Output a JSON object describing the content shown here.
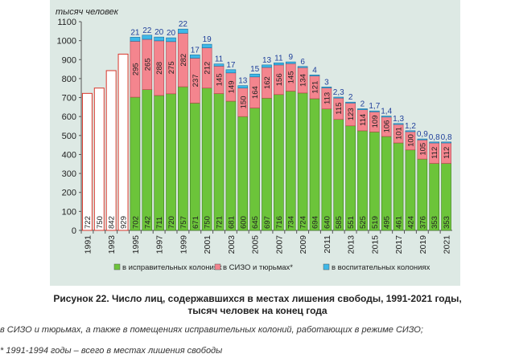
{
  "chart_data": {
    "type": "bar",
    "stacked": true,
    "ylabel": "тысяч человек",
    "ylim": [
      0,
      1100
    ],
    "yticks": [
      0,
      100,
      200,
      300,
      400,
      500,
      600,
      700,
      800,
      900,
      1000,
      1100
    ],
    "grid": false,
    "legend_position": "bottom",
    "categories": [
      "1991",
      "1992",
      "1993",
      "1994",
      "1995",
      "1996",
      "1997",
      "1998",
      "1999",
      "2000",
      "2001",
      "2002",
      "2003",
      "2004",
      "2005",
      "2006",
      "2007",
      "2008",
      "2009",
      "2010",
      "2011",
      "2012",
      "2013",
      "2014",
      "2015",
      "2016",
      "2017",
      "2018",
      "2019",
      "2020",
      "2021"
    ],
    "xtick_labels": [
      "1991",
      "",
      "1993",
      "",
      "1995",
      "",
      "1997",
      "",
      "1999",
      "",
      "2001",
      "",
      "2003",
      "",
      "2005",
      "",
      "2007",
      "",
      "2009",
      "",
      "2011",
      "",
      "2013",
      "",
      "2015",
      "",
      "2017",
      "",
      "2019",
      "",
      "2021"
    ],
    "series": [
      {
        "name": "в исправительных колониях",
        "color": "#6cc43a",
        "values": [
          722,
          750,
          842,
          929,
          702,
          742,
          711,
          720,
          757,
          671,
          750,
          721,
          681,
          600,
          645,
          697,
          716,
          734,
          724,
          694,
          640,
          585,
          551,
          525,
          519,
          495,
          461,
          424,
          376,
          353,
          353
        ]
      },
      {
        "name": "в СИЗО и тюрьмах*",
        "color": "#f4858e",
        "values": [
          null,
          null,
          null,
          null,
          295,
          265,
          288,
          275,
          282,
          237,
          212,
          145,
          149,
          150,
          164,
          162,
          156,
          145,
          134,
          121,
          113,
          115,
          123,
          114,
          109,
          106,
          101,
          100,
          105,
          112,
          112
        ]
      },
      {
        "name": "в воспитательных колониях",
        "color": "#3eb8e8",
        "values": [
          null,
          null,
          null,
          null,
          21,
          22,
          20,
          20,
          22,
          17,
          19,
          11,
          17,
          13,
          15,
          13,
          11,
          9,
          6,
          4,
          3,
          2.3,
          2,
          2,
          1.7,
          1.4,
          1.3,
          1.2,
          0.9,
          0.8,
          0.8
        ]
      }
    ],
    "outline_only_years": [
      "1991",
      "1992",
      "1993",
      "1994"
    ],
    "outline_color": "#d9362b"
  },
  "caption": "Рисунок 22. Число лиц, содержавшихся в местах лишения свободы, 1991-2021 годы, тысяч человек на конец года",
  "notes": [
    "в СИЗО и тюрьмах, а также в помещениях исправительных колоний, работающих в режиме СИЗО;",
    "* 1991-1994 годы – всего в местах лишения свободы"
  ]
}
